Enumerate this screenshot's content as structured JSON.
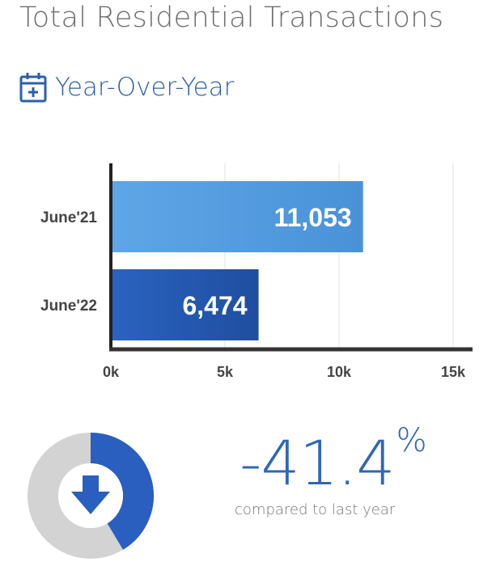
{
  "header": {
    "title": "Total Residential Transactions",
    "subtitle": "Year-Over-Year",
    "subtitle_icon": "calendar-plus-icon"
  },
  "chart_data": {
    "type": "bar",
    "orientation": "horizontal",
    "categories": [
      "June'21",
      "June'22"
    ],
    "values": [
      11053,
      6474
    ],
    "value_labels": [
      "11,053",
      "6,474"
    ],
    "xlim": [
      0,
      15000
    ],
    "ticks": [
      0,
      5000,
      10000,
      15000
    ],
    "tick_labels": [
      "0k",
      "5k",
      "10k",
      "15k"
    ],
    "grid": "vertical",
    "colors": [
      "#5ea6e6",
      "#2458b0"
    ]
  },
  "summary": {
    "change_value": "-41.4",
    "change_unit": "%",
    "caption": "compared to last year",
    "change_fraction": 0.414,
    "direction_icon": "arrow-down-icon",
    "colors": {
      "accent": "#2a5fc0",
      "track": "#d3d3d3"
    }
  }
}
